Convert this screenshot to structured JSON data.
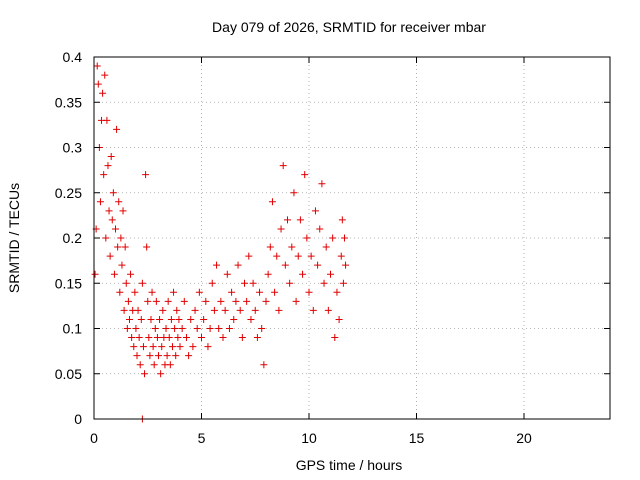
{
  "chart_data": {
    "type": "scatter",
    "title": "Day 079 of 2026, SRMTID for receiver mbar",
    "xlabel": "GPS time / hours",
    "ylabel": "SRMTID / TECUs",
    "xlim": [
      0,
      24
    ],
    "ylim": [
      0,
      0.4
    ],
    "grid": true,
    "marker": "+",
    "color": "#e00000",
    "x_ticks": [
      0,
      5,
      10,
      15,
      20
    ],
    "x_tick_labels": [
      "0",
      "5",
      "10",
      "15",
      "20"
    ],
    "y_ticks": [
      0,
      0.05,
      0.1,
      0.15,
      0.2,
      0.25,
      0.3,
      0.35,
      0.4
    ],
    "y_tick_labels": [
      "0",
      "0.05",
      "0.1",
      "0.15",
      "0.2",
      "0.25",
      "0.3",
      "0.35",
      "0.4"
    ],
    "series": [
      {
        "name": "mbar",
        "points": [
          [
            0.05,
            0.16
          ],
          [
            0.1,
            0.21
          ],
          [
            0.15,
            0.39
          ],
          [
            0.2,
            0.37
          ],
          [
            0.25,
            0.3
          ],
          [
            0.3,
            0.24
          ],
          [
            0.35,
            0.33
          ],
          [
            0.4,
            0.36
          ],
          [
            0.45,
            0.27
          ],
          [
            0.5,
            0.38
          ],
          [
            0.55,
            0.2
          ],
          [
            0.6,
            0.33
          ],
          [
            0.65,
            0.28
          ],
          [
            0.7,
            0.23
          ],
          [
            0.75,
            0.18
          ],
          [
            0.8,
            0.29
          ],
          [
            0.85,
            0.22
          ],
          [
            0.9,
            0.25
          ],
          [
            0.95,
            0.16
          ],
          [
            1.0,
            0.21
          ],
          [
            1.05,
            0.32
          ],
          [
            1.1,
            0.19
          ],
          [
            1.15,
            0.24
          ],
          [
            1.2,
            0.14
          ],
          [
            1.25,
            0.2
          ],
          [
            1.3,
            0.17
          ],
          [
            1.35,
            0.23
          ],
          [
            1.4,
            0.12
          ],
          [
            1.45,
            0.19
          ],
          [
            1.5,
            0.15
          ],
          [
            1.55,
            0.1
          ],
          [
            1.6,
            0.13
          ],
          [
            1.65,
            0.11
          ],
          [
            1.7,
            0.16
          ],
          [
            1.75,
            0.09
          ],
          [
            1.8,
            0.12
          ],
          [
            1.85,
            0.08
          ],
          [
            1.9,
            0.14
          ],
          [
            1.95,
            0.1
          ],
          [
            2.0,
            0.07
          ],
          [
            2.05,
            0.12
          ],
          [
            2.1,
            0.09
          ],
          [
            2.15,
            0.06
          ],
          [
            2.2,
            0.11
          ],
          [
            2.25,
            0.15
          ],
          [
            2.3,
            0.08
          ],
          [
            2.35,
            0.05
          ],
          [
            2.4,
            0.27
          ],
          [
            2.45,
            0.19
          ],
          [
            2.5,
            0.13
          ],
          [
            2.55,
            0.09
          ],
          [
            2.6,
            0.07
          ],
          [
            2.65,
            0.11
          ],
          [
            2.7,
            0.14
          ],
          [
            2.75,
            0.08
          ],
          [
            2.8,
            0.06
          ],
          [
            2.85,
            0.1
          ],
          [
            2.9,
            0.13
          ],
          [
            2.95,
            0.09
          ],
          [
            3.0,
            0.07
          ],
          [
            3.05,
            0.11
          ],
          [
            3.1,
            0.05
          ],
          [
            3.15,
            0.08
          ],
          [
            3.2,
            0.12
          ],
          [
            3.25,
            0.09
          ],
          [
            3.3,
            0.06
          ],
          [
            3.35,
            0.1
          ],
          [
            3.4,
            0.07
          ],
          [
            3.45,
            0.13
          ],
          [
            3.5,
            0.09
          ],
          [
            3.55,
            0.06
          ],
          [
            3.6,
            0.11
          ],
          [
            3.65,
            0.08
          ],
          [
            3.7,
            0.14
          ],
          [
            3.75,
            0.1
          ],
          [
            3.8,
            0.07
          ],
          [
            3.85,
            0.12
          ],
          [
            3.9,
            0.09
          ],
          [
            3.95,
            0.11
          ],
          [
            4.0,
            0.08
          ],
          [
            4.1,
            0.1
          ],
          [
            4.2,
            0.13
          ],
          [
            4.3,
            0.09
          ],
          [
            4.4,
            0.07
          ],
          [
            4.5,
            0.11
          ],
          [
            4.6,
            0.08
          ],
          [
            4.7,
            0.12
          ],
          [
            4.8,
            0.1
          ],
          [
            4.9,
            0.14
          ],
          [
            5.0,
            0.09
          ],
          [
            5.1,
            0.11
          ],
          [
            5.2,
            0.13
          ],
          [
            5.3,
            0.08
          ],
          [
            5.4,
            0.1
          ],
          [
            5.5,
            0.15
          ],
          [
            5.6,
            0.12
          ],
          [
            5.7,
            0.17
          ],
          [
            5.8,
            0.1
          ],
          [
            5.9,
            0.13
          ],
          [
            6.0,
            0.09
          ],
          [
            6.1,
            0.12
          ],
          [
            6.2,
            0.16
          ],
          [
            6.3,
            0.1
          ],
          [
            6.4,
            0.14
          ],
          [
            6.5,
            0.11
          ],
          [
            6.6,
            0.13
          ],
          [
            6.7,
            0.17
          ],
          [
            6.8,
            0.12
          ],
          [
            6.9,
            0.09
          ],
          [
            7.0,
            0.15
          ],
          [
            7.1,
            0.13
          ],
          [
            7.2,
            0.18
          ],
          [
            7.3,
            0.11
          ],
          [
            7.4,
            0.15
          ],
          [
            7.5,
            0.12
          ],
          [
            7.6,
            0.09
          ],
          [
            7.7,
            0.14
          ],
          [
            7.8,
            0.1
          ],
          [
            7.9,
            0.06
          ],
          [
            8.0,
            0.13
          ],
          [
            8.1,
            0.16
          ],
          [
            8.2,
            0.19
          ],
          [
            8.3,
            0.24
          ],
          [
            8.4,
            0.14
          ],
          [
            8.5,
            0.18
          ],
          [
            8.6,
            0.12
          ],
          [
            8.7,
            0.21
          ],
          [
            8.8,
            0.28
          ],
          [
            8.9,
            0.17
          ],
          [
            9.0,
            0.22
          ],
          [
            9.1,
            0.15
          ],
          [
            9.2,
            0.19
          ],
          [
            9.3,
            0.25
          ],
          [
            9.4,
            0.13
          ],
          [
            9.5,
            0.18
          ],
          [
            9.6,
            0.22
          ],
          [
            9.7,
            0.16
          ],
          [
            9.8,
            0.27
          ],
          [
            9.9,
            0.2
          ],
          [
            10.0,
            0.14
          ],
          [
            10.1,
            0.18
          ],
          [
            10.2,
            0.12
          ],
          [
            10.3,
            0.23
          ],
          [
            10.4,
            0.17
          ],
          [
            10.5,
            0.21
          ],
          [
            10.6,
            0.26
          ],
          [
            10.7,
            0.15
          ],
          [
            10.8,
            0.19
          ],
          [
            10.9,
            0.12
          ],
          [
            11.0,
            0.16
          ],
          [
            11.1,
            0.2
          ],
          [
            11.2,
            0.09
          ],
          [
            11.3,
            0.14
          ],
          [
            11.4,
            0.11
          ],
          [
            11.5,
            0.18
          ],
          [
            11.55,
            0.22
          ],
          [
            11.6,
            0.15
          ],
          [
            11.65,
            0.2
          ],
          [
            11.7,
            0.17
          ],
          [
            2.25,
            0.0
          ]
        ]
      }
    ]
  }
}
